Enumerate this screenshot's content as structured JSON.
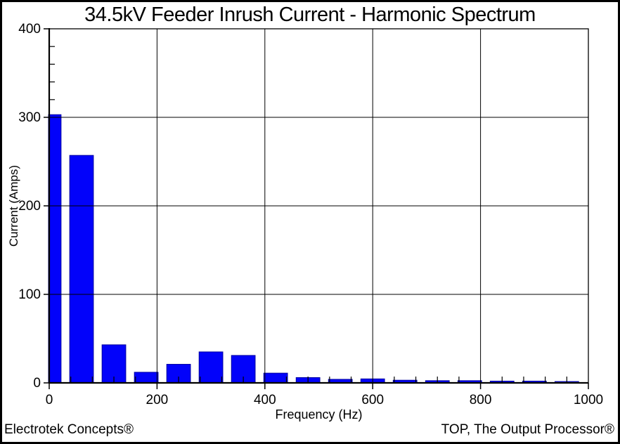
{
  "footer": {
    "left": "Electrotek Concepts®",
    "right": "TOP, The Output Processor®"
  },
  "chart_data": {
    "type": "bar",
    "title": "34.5kV Feeder Inrush Current - Harmonic Spectrum",
    "xlabel": "Frequency (Hz)",
    "ylabel": "Current (Amps)",
    "xlim": [
      0,
      1000
    ],
    "ylim": [
      0,
      400
    ],
    "x_major_ticks": [
      0,
      200,
      400,
      600,
      800,
      1000
    ],
    "x_minor_step": 40,
    "y_major_ticks": [
      0,
      100,
      200,
      300,
      400
    ],
    "y_minor_step": 20,
    "grid": true,
    "legend": "none",
    "bar_width_hz": 44,
    "bar_color": "#0202FA",
    "bar_edge_color": "#0000A0",
    "x": [
      0,
      60,
      120,
      180,
      240,
      300,
      360,
      420,
      480,
      540,
      600,
      660,
      720,
      780,
      840,
      900,
      960
    ],
    "values": [
      303,
      257,
      43,
      12,
      21,
      35,
      31,
      11,
      6,
      4,
      4.5,
      3,
      2.5,
      2.5,
      2,
      2,
      1.5
    ]
  }
}
